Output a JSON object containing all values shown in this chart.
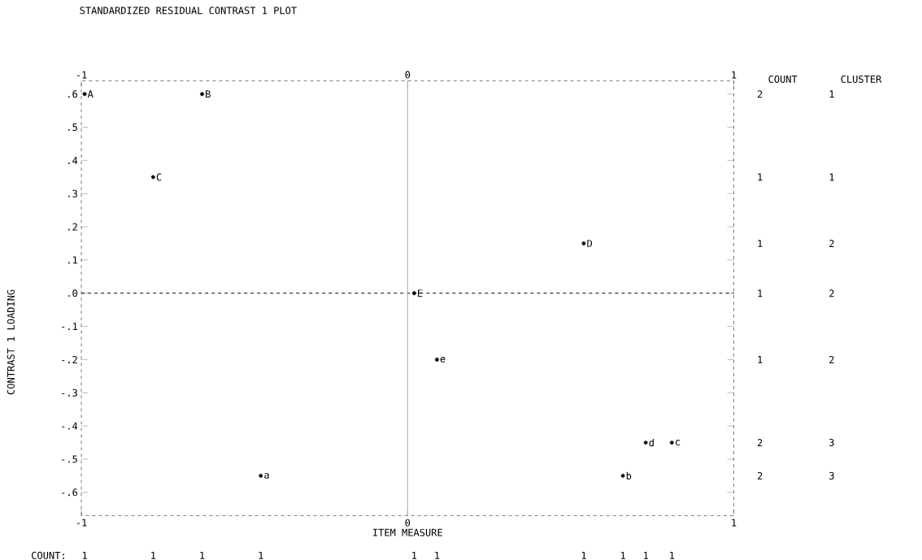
{
  "chart_data": {
    "type": "scatter",
    "title": "STANDARDIZED RESIDUAL CONTRAST 1 PLOT",
    "xlabel": "ITEM MEASURE",
    "ylabel": "CONTRAST 1 LOADING",
    "x": [
      -0.99,
      -0.63,
      -0.78,
      0.54,
      0.02,
      0.09,
      0.73,
      0.81,
      0.66,
      -0.45
    ],
    "values": [
      0.6,
      0.6,
      0.35,
      0.15,
      0,
      -0.2,
      -0.45,
      -0.45,
      -0.55,
      -0.55
    ],
    "value_labels": [
      "A",
      "B",
      "C",
      "D",
      "E",
      "e",
      "d",
      "c",
      "b",
      "a"
    ],
    "marker": "circle",
    "xlim": [
      -1,
      1
    ],
    "xticks": [
      -1,
      0,
      1
    ],
    "x2lim": [
      -1,
      1
    ],
    "x2ticks": [
      -1,
      0,
      1
    ],
    "ylim": [
      -0.67,
      0.64
    ],
    "yticks": [
      {
        "value": 0.6,
        "label": ".6"
      },
      {
        "value": 0.5,
        "label": ".5"
      },
      {
        "value": 0.4,
        "label": ".4"
      },
      {
        "value": 0.3,
        "label": ".3"
      },
      {
        "value": 0.2,
        "label": ".2"
      },
      {
        "value": 0.1,
        "label": ".1"
      },
      {
        "value": 0,
        "label": ".0"
      },
      {
        "value": -0.1,
        "label": "-.1"
      },
      {
        "value": -0.2,
        "label": "-.2"
      },
      {
        "value": -0.3,
        "label": "-.3"
      },
      {
        "value": -0.4,
        "label": "-.4"
      },
      {
        "value": -0.5,
        "label": "-.5"
      },
      {
        "value": -0.6,
        "label": "-.6"
      }
    ],
    "ref_lines": [
      {
        "axis": "y",
        "value": 0,
        "line_style": "dashed",
        "color": "#000000"
      },
      {
        "axis": "x",
        "value": 0,
        "line_style": "solid",
        "color": "#9fb3cc"
      }
    ],
    "annotations": [
      "COUNT",
      "CLUSTER",
      "2",
      "1",
      "1",
      "1",
      "1",
      "2",
      "1",
      "2",
      "1",
      "2",
      "2",
      "3",
      "2",
      "3",
      "COUNT:",
      "1",
      "1",
      "1",
      "1",
      "1",
      "1",
      "1",
      "1",
      "1",
      "1"
    ]
  }
}
